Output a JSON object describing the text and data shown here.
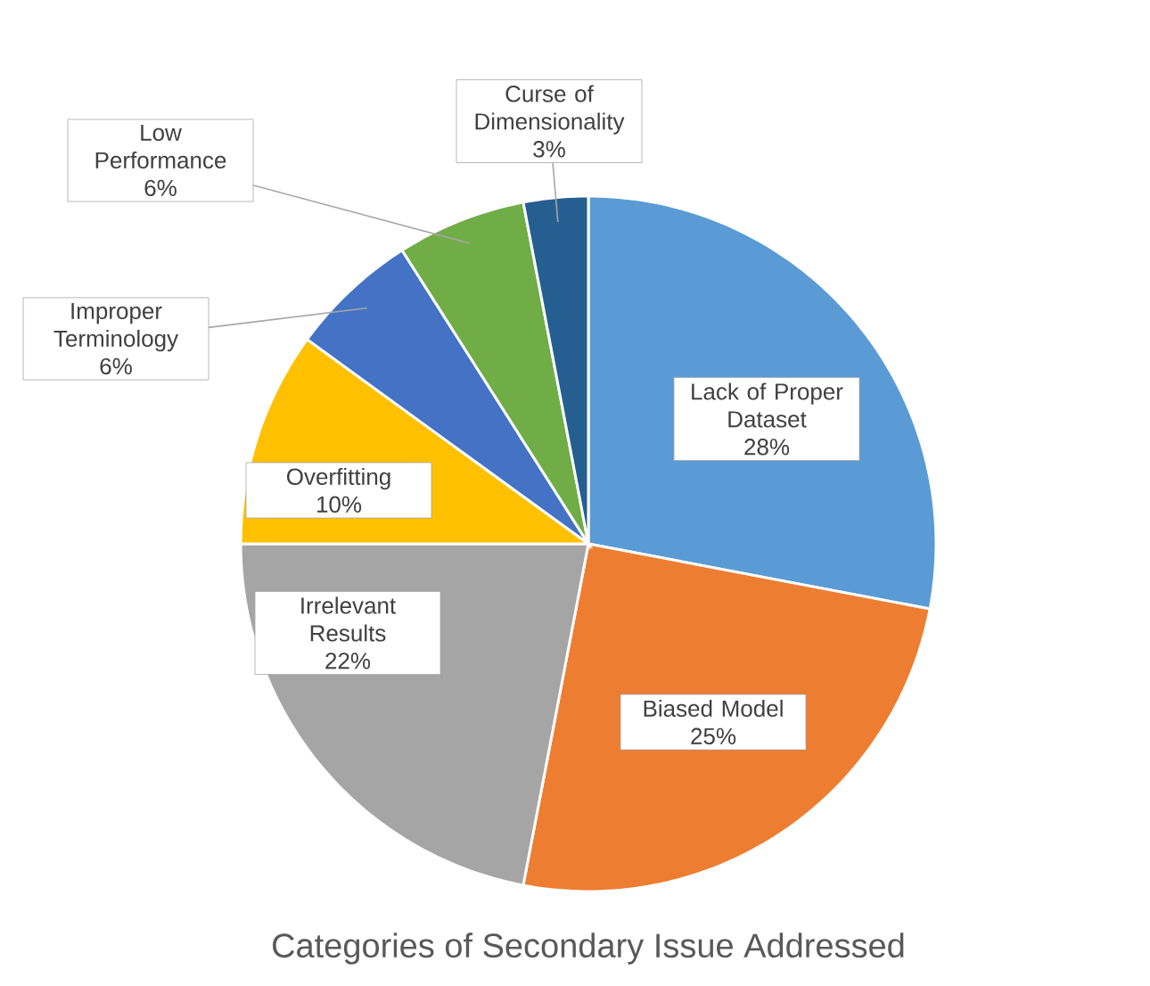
{
  "chart_data": {
    "type": "pie",
    "title": "Categories of Secondary Issue Addressed",
    "categories": [
      "Lack of Proper Dataset",
      "Biased Model",
      "Irrelevant Results",
      "Overfitting",
      "Improper Terminology",
      "Low Performance",
      "Curse of Dimensionality"
    ],
    "values": [
      28,
      25,
      22,
      10,
      6,
      6,
      3
    ],
    "value_labels": [
      "28%",
      "25%",
      "22%",
      "10%",
      "6%",
      "6%",
      "3%"
    ],
    "colors": [
      "#5b9bd5",
      "#ed7d31",
      "#a5a5a5",
      "#ffc000",
      "#4472c4",
      "#70ad47",
      "#255e91"
    ]
  }
}
